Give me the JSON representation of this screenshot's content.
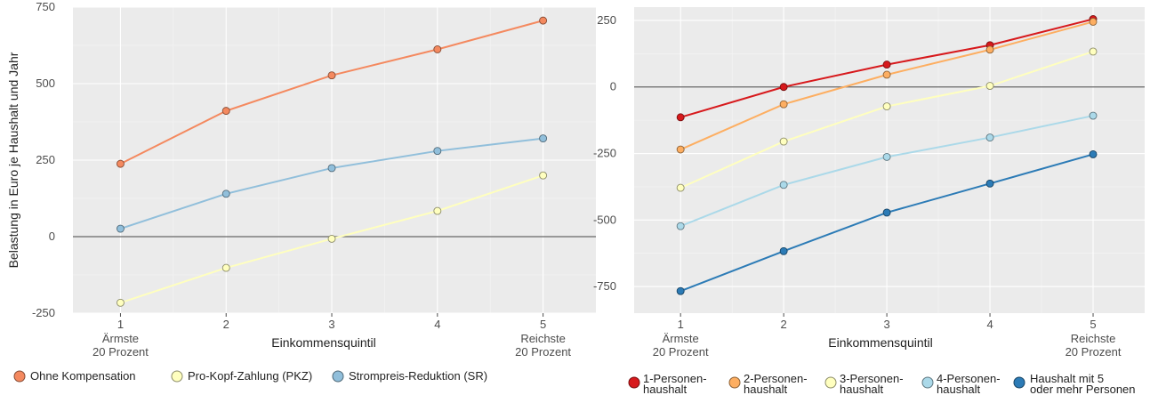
{
  "chart_data": [
    {
      "type": "line",
      "title": "",
      "ylabel": "Belastung in Euro je Haushalt und Jahr",
      "xlabel": "Einkommensquintil",
      "x": [
        1,
        2,
        3,
        4,
        5
      ],
      "x_ticks": [
        "1",
        "2",
        "3",
        "4",
        "5"
      ],
      "x_tick_sublabels": [
        {
          "x": 1,
          "lines": [
            "Ärmste",
            "20 Prozent"
          ]
        },
        {
          "x": 5,
          "lines": [
            "Reichste",
            "20 Prozent"
          ]
        }
      ],
      "ylim": [
        -250,
        750
      ],
      "y_ticks": [
        -250,
        0,
        250,
        500,
        750
      ],
      "y_tick_labels": [
        "-250",
        "0",
        "250",
        "500",
        "750"
      ],
      "grid": true,
      "zero_line": true,
      "legend_position": "bottom",
      "series": [
        {
          "name": "Ohne Kompensation",
          "color": "#f4895f",
          "values": [
            238,
            411,
            527,
            612,
            706
          ]
        },
        {
          "name": "Pro-Kopf-Zahlung (PKZ)",
          "color": "#ffffbf",
          "values": [
            -216,
            -102,
            -7,
            84,
            200
          ]
        },
        {
          "name": "Strompreis-Reduktion (SR)",
          "color": "#91bfdb",
          "values": [
            26,
            140,
            224,
            280,
            321
          ]
        }
      ]
    },
    {
      "type": "line",
      "title": "",
      "ylabel": "",
      "xlabel": "Einkommensquintil",
      "x": [
        1,
        2,
        3,
        4,
        5
      ],
      "x_ticks": [
        "1",
        "2",
        "3",
        "4",
        "5"
      ],
      "x_tick_sublabels": [
        {
          "x": 1,
          "lines": [
            "Ärmste",
            "20 Prozent"
          ]
        },
        {
          "x": 5,
          "lines": [
            "Reichste",
            "20 Prozent"
          ]
        }
      ],
      "ylim": [
        -850,
        300
      ],
      "y_ticks": [
        -750,
        -500,
        -250,
        0,
        250
      ],
      "y_tick_labels": [
        "-750",
        "-500",
        "-250",
        "0",
        "250"
      ],
      "grid": true,
      "zero_line": true,
      "legend_position": "bottom",
      "series": [
        {
          "name": "1-Personen-haushalt",
          "name_lines": [
            "1-Personen-",
            "haushalt"
          ],
          "color": "#d7191c",
          "values": [
            -114,
            0,
            84,
            157,
            255
          ]
        },
        {
          "name": "2-Personen-haushalt",
          "name_lines": [
            "2-Personen-",
            "haushalt"
          ],
          "color": "#fdae61",
          "values": [
            -235,
            -65,
            46,
            140,
            245
          ]
        },
        {
          "name": "3-Personen-haushalt",
          "name_lines": [
            "3-Personen-",
            "haushalt"
          ],
          "color": "#ffffbf",
          "values": [
            -379,
            -205,
            -73,
            4,
            133
          ]
        },
        {
          "name": "4-Personen-haushalt",
          "name_lines": [
            "4-Personen-",
            "haushalt"
          ],
          "color": "#abd9e9",
          "values": [
            -523,
            -368,
            -263,
            -190,
            -108
          ]
        },
        {
          "name": "Haushalt mit 5 oder mehr Personen",
          "name_lines": [
            "Haushalt mit 5",
            "oder mehr Personen"
          ],
          "color": "#2c7bb6",
          "values": [
            -767,
            -617,
            -472,
            -363,
            -253
          ]
        }
      ]
    }
  ]
}
